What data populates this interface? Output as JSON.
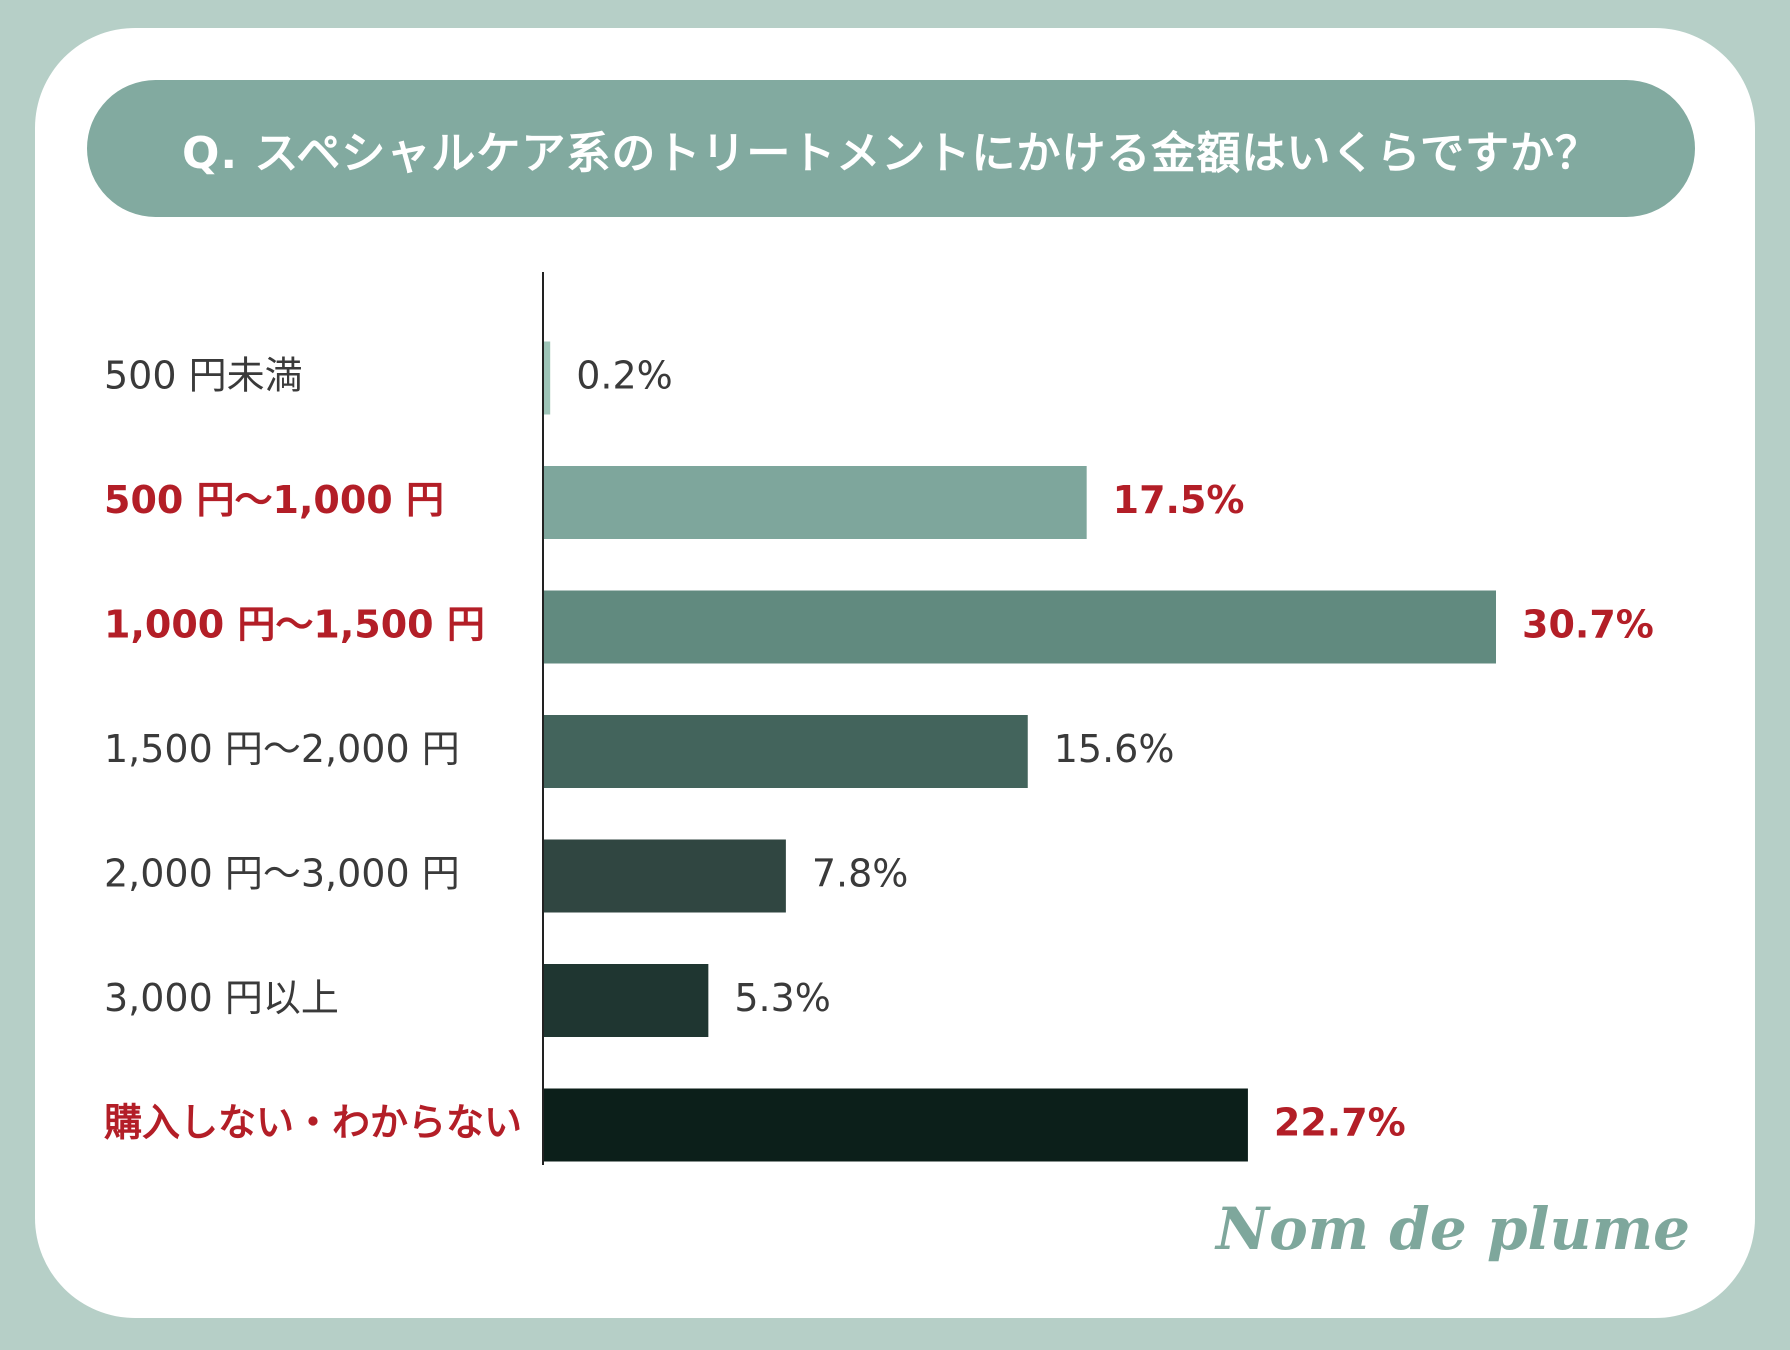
{
  "chart_data": {
    "type": "bar",
    "orientation": "horizontal",
    "title": "Q. スペシャルケア系のトリートメントにかける金額はいくらですか？",
    "categories": [
      "500 円未満",
      "500 円〜1,000 円",
      "1,000 円〜1,500 円",
      "1,500 円〜2,000 円",
      "2,000 円〜3,000 円",
      "3,000 円以上",
      "購入しない・わからない"
    ],
    "values": [
      0.2,
      17.5,
      30.7,
      15.6,
      7.8,
      5.3,
      22.7
    ],
    "value_labels": [
      "0.2%",
      "17.5%",
      "30.7%",
      "15.6%",
      "7.8%",
      "5.3%",
      "22.7%"
    ],
    "highlighted": [
      false,
      true,
      true,
      false,
      false,
      false,
      true
    ],
    "bar_colors": [
      "#9ec5b8",
      "#7ea69c",
      "#618a7f",
      "#43645c",
      "#304641",
      "#1f3631",
      "#0c1f1a"
    ],
    "highlight_color": "#b31e27",
    "normal_text_color": "#3a3a3a",
    "xlim": [
      0,
      30.7
    ],
    "grid": false,
    "legend": "none"
  },
  "brand": {
    "text": "Nom de plume",
    "color": "#7ea79c"
  }
}
